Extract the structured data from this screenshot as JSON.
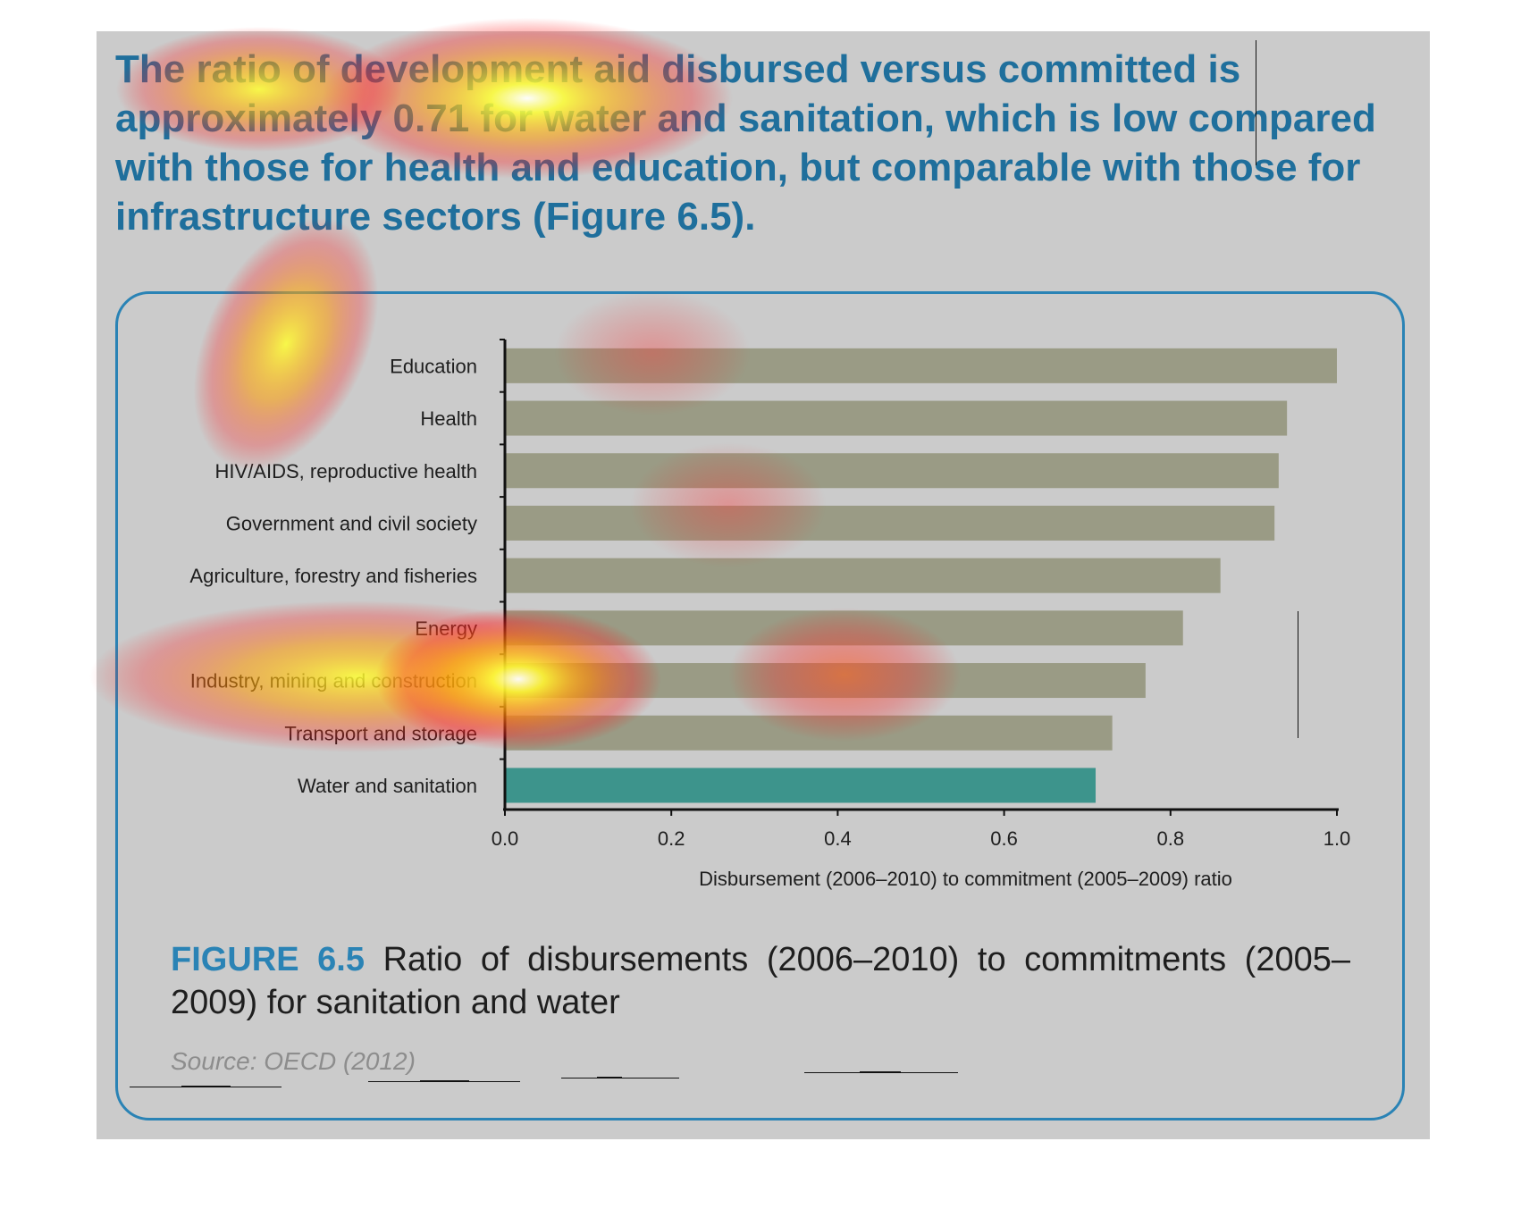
{
  "headline": "The ratio of development aid disbursed versus committed is approximately 0.71 for water and sanitation, which is low compared with those for health and education, but comparable with those for infrastructure sectors (Figure 6.5).",
  "caption": {
    "figure_label": "FIGURE 6.5",
    "text": "Ratio of disbursements (2006–2010) to commitments (2005–2009) for sanitation and water"
  },
  "source": "Source: OECD (2012)",
  "colors": {
    "headline": "#1f6f9c",
    "frame": "#2a83b5",
    "bar_default": "#9a9b85",
    "bar_highlight": "#3d948c",
    "background_panel": "#cbcbcb"
  },
  "chart_data": {
    "type": "bar",
    "orientation": "horizontal",
    "title": "",
    "xlabel": "Disbursement (2006–2010) to commitment (2005–2009) ratio",
    "ylabel": "",
    "xlim": [
      0,
      1.0
    ],
    "xticks": [
      "0.0",
      "0.2",
      "0.4",
      "0.6",
      "0.8",
      "1.0"
    ],
    "categories": [
      "Education",
      "Health",
      "HIV/AIDS, reproductive health",
      "Government and civil society",
      "Agriculture, forestry and fisheries",
      "Energy",
      "Industry, mining and construction",
      "Transport and storage",
      "Water and sanitation"
    ],
    "values": [
      1.0,
      0.94,
      0.93,
      0.925,
      0.86,
      0.815,
      0.77,
      0.73,
      0.71
    ],
    "highlight": "Water and sanitation",
    "grid": false,
    "legend": "none"
  },
  "heatmap_overlay": {
    "present": true,
    "colors": [
      "#ff0000",
      "#ffff00",
      "#ffffff"
    ]
  }
}
